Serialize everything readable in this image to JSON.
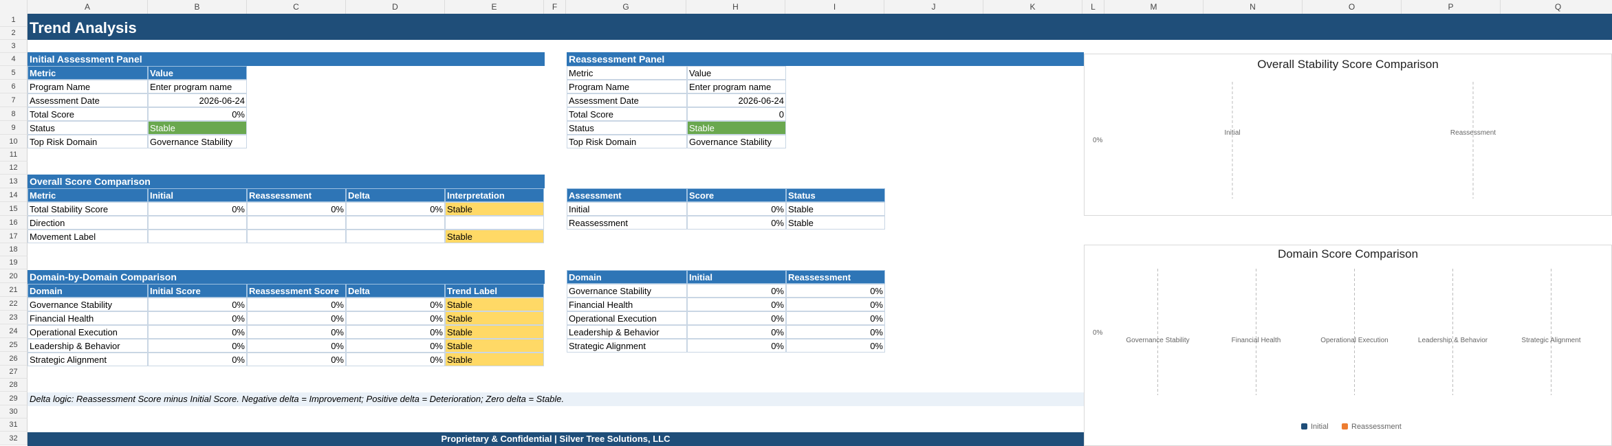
{
  "columns": [
    "A",
    "B",
    "C",
    "D",
    "E",
    "F",
    "G",
    "H",
    "I",
    "J",
    "K",
    "L",
    "M",
    "N",
    "O",
    "P",
    "Q"
  ],
  "rows": [
    "1",
    "2",
    "3",
    "4",
    "5",
    "6",
    "7",
    "8",
    "9",
    "10",
    "11",
    "12",
    "13",
    "14",
    "15",
    "16",
    "17",
    "18",
    "19",
    "20",
    "21",
    "22",
    "23",
    "24",
    "25",
    "26",
    "27",
    "28",
    "29",
    "30",
    "31",
    "32"
  ],
  "title": "Trend Analysis",
  "initial_panel": {
    "title": "Initial Assessment Panel",
    "header": [
      "Metric",
      "Value"
    ],
    "rows": [
      [
        "Program Name",
        "Enter program name"
      ],
      [
        "Assessment Date",
        "2026-06-24"
      ],
      [
        "Total Score",
        "0%"
      ],
      [
        "Status",
        "Stable"
      ],
      [
        "Top Risk Domain",
        "Governance Stability"
      ]
    ]
  },
  "reassessment_panel": {
    "title": "Reassessment Panel",
    "header": [
      "Metric",
      "Value"
    ],
    "rows": [
      [
        "Program Name",
        "Enter program name"
      ],
      [
        "Assessment Date",
        "2026-06-24"
      ],
      [
        "Total Score",
        "0"
      ],
      [
        "Status",
        "Stable"
      ],
      [
        "Top Risk Domain",
        "Governance Stability"
      ]
    ]
  },
  "overall_comparison": {
    "title": "Overall Score Comparison",
    "header": [
      "Metric",
      "Initial",
      "Reassessment",
      "Delta",
      "Interpretation"
    ],
    "rows": [
      [
        "Total Stability Score",
        "0%",
        "0%",
        "0%",
        "Stable"
      ],
      [
        "Direction",
        "",
        "",
        "",
        ""
      ],
      [
        "Movement Label",
        "",
        "",
        "",
        "Stable"
      ]
    ]
  },
  "score_table": {
    "header": [
      "Assessment",
      "Score",
      "Status"
    ],
    "rows": [
      [
        "Initial",
        "0%",
        "Stable"
      ],
      [
        "Reassessment",
        "0%",
        "Stable"
      ]
    ]
  },
  "domain_comparison": {
    "title": "Domain-by-Domain Comparison",
    "header": [
      "Domain",
      "Initial Score",
      "Reassessment Score",
      "Delta",
      "Trend Label"
    ],
    "rows": [
      [
        "Governance Stability",
        "0%",
        "0%",
        "0%",
        "Stable"
      ],
      [
        "Financial Health",
        "0%",
        "0%",
        "0%",
        "Stable"
      ],
      [
        "Operational Execution",
        "0%",
        "0%",
        "0%",
        "Stable"
      ],
      [
        "Leadership & Behavior",
        "0%",
        "0%",
        "0%",
        "Stable"
      ],
      [
        "Strategic Alignment",
        "0%",
        "0%",
        "0%",
        "Stable"
      ]
    ]
  },
  "domain_table": {
    "header": [
      "Domain",
      "Initial",
      "Reassessment"
    ],
    "rows": [
      [
        "Governance Stability",
        "0%",
        "0%"
      ],
      [
        "Financial Health",
        "0%",
        "0%"
      ],
      [
        "Operational Execution",
        "0%",
        "0%"
      ],
      [
        "Leadership & Behavior",
        "0%",
        "0%"
      ],
      [
        "Strategic Alignment",
        "0%",
        "0%"
      ]
    ]
  },
  "note": "Delta logic: Reassessment Score minus Initial Score. Negative delta = Improvement; Positive delta = Deterioration; Zero delta = Stable.",
  "footer": "Proprietary & Confidential | Silver Tree Solutions, LLC",
  "colors": {
    "header_blue": "#2e75b6",
    "title_blue": "#1f4e79",
    "stable_green": "#6aa84f",
    "stable_yellow": "#ffd966",
    "series_initial": "#1f4e79",
    "series_reassessment": "#ed7d31"
  },
  "chart_data": [
    {
      "type": "bar",
      "title": "Overall Stability Score Comparison",
      "categories": [
        "Initial",
        "Reassessment"
      ],
      "values": [
        0,
        0
      ],
      "ytick": "0%",
      "grid": true
    },
    {
      "type": "bar",
      "title": "Domain Score Comparison",
      "categories": [
        "Governance Stability",
        "Financial Health",
        "Operational Execution",
        "Leadership & Behavior",
        "Strategic Alignment"
      ],
      "series": [
        {
          "name": "Initial",
          "values": [
            0,
            0,
            0,
            0,
            0
          ]
        },
        {
          "name": "Reassessment",
          "values": [
            0,
            0,
            0,
            0,
            0
          ]
        }
      ],
      "ytick": "0%",
      "legend": "bottom"
    }
  ]
}
